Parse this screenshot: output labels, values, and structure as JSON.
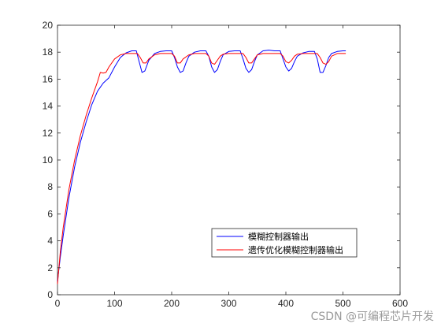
{
  "chart_data": {
    "type": "line",
    "xlim": [
      0,
      600
    ],
    "ylim": [
      0,
      20
    ],
    "xticks": [
      0,
      100,
      200,
      300,
      400,
      500,
      600
    ],
    "yticks": [
      0,
      2,
      4,
      6,
      8,
      10,
      12,
      14,
      16,
      18,
      20
    ],
    "grid": false,
    "legend_position": "lower-right",
    "series": [
      {
        "name": "模糊控制器输出",
        "color": "#0000ff",
        "x": [
          0,
          5,
          10,
          20,
          30,
          40,
          50,
          60,
          70,
          80,
          90,
          100,
          110,
          120,
          130,
          138,
          143,
          148,
          153,
          160,
          170,
          180,
          190,
          200,
          205,
          210,
          215,
          220,
          225,
          230,
          240,
          250,
          260,
          265,
          270,
          275,
          280,
          285,
          290,
          300,
          310,
          320,
          325,
          330,
          335,
          340,
          345,
          350,
          360,
          370,
          380,
          390,
          395,
          400,
          405,
          410,
          415,
          420,
          430,
          440,
          450,
          455,
          460,
          465,
          470,
          475,
          480,
          490,
          500,
          505
        ],
        "y": [
          1.0,
          2.8,
          4.4,
          7.2,
          9.5,
          11.3,
          12.8,
          14.1,
          15.1,
          15.7,
          16.1,
          16.9,
          17.6,
          17.95,
          18.1,
          18.1,
          17.3,
          16.5,
          16.6,
          17.4,
          17.9,
          18.05,
          18.1,
          18.1,
          17.6,
          16.9,
          16.5,
          16.6,
          17.2,
          17.7,
          18.0,
          18.1,
          18.1,
          17.7,
          16.9,
          16.5,
          16.7,
          17.3,
          17.8,
          18.05,
          18.1,
          18.1,
          17.5,
          16.8,
          16.5,
          16.7,
          17.3,
          17.8,
          18.1,
          18.15,
          18.1,
          18.1,
          17.5,
          16.9,
          16.6,
          16.8,
          17.3,
          17.7,
          17.95,
          18.05,
          18.05,
          17.5,
          16.5,
          16.5,
          17.0,
          17.6,
          17.9,
          18.05,
          18.1,
          18.1
        ]
      },
      {
        "name": "遗传优化模糊控制器输出",
        "color": "#ff0000",
        "x": [
          0,
          5,
          10,
          20,
          30,
          40,
          50,
          60,
          70,
          75,
          80,
          85,
          90,
          100,
          110,
          120,
          135,
          140,
          145,
          150,
          155,
          160,
          170,
          180,
          195,
          200,
          205,
          210,
          215,
          220,
          230,
          240,
          260,
          265,
          270,
          275,
          280,
          285,
          290,
          300,
          325,
          330,
          335,
          340,
          345,
          350,
          360,
          390,
          395,
          400,
          405,
          410,
          415,
          420,
          430,
          455,
          460,
          465,
          470,
          475,
          480,
          490,
          505
        ],
        "y": [
          0.8,
          3.2,
          5.0,
          7.8,
          10.0,
          11.8,
          13.3,
          14.6,
          15.8,
          16.5,
          16.45,
          16.5,
          16.9,
          17.5,
          17.8,
          17.9,
          17.9,
          17.9,
          17.6,
          17.2,
          17.2,
          17.5,
          17.8,
          17.9,
          17.9,
          17.9,
          17.7,
          17.2,
          17.2,
          17.5,
          17.8,
          17.9,
          17.9,
          17.7,
          17.2,
          17.1,
          17.4,
          17.7,
          17.85,
          17.9,
          17.9,
          17.6,
          17.2,
          17.2,
          17.5,
          17.8,
          17.9,
          17.9,
          17.7,
          17.3,
          17.2,
          17.4,
          17.7,
          17.85,
          17.9,
          17.9,
          17.6,
          17.2,
          17.1,
          17.3,
          17.7,
          17.9,
          17.9
        ]
      }
    ]
  },
  "watermark": "CSDN @可编程芯片开发"
}
